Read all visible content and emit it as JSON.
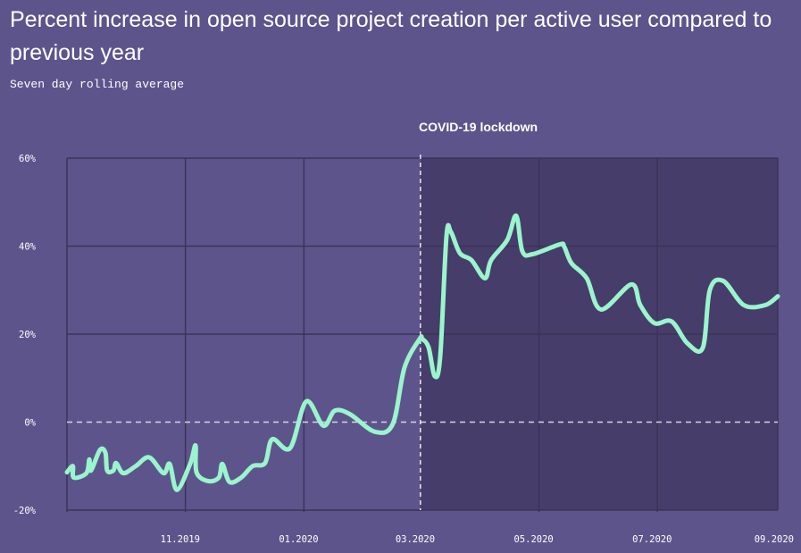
{
  "chart_data": {
    "type": "line",
    "title": "Percent increase in open source project creation per active user compared to previous year",
    "subtitle": "Seven day rolling average",
    "annotation": {
      "label": "COVID-19 lockdown",
      "start_day": 182
    },
    "x_start": "2019-09-01",
    "xlim_days": [
      0,
      366
    ],
    "ylim": [
      -20,
      60
    ],
    "grid": true,
    "yticks": [
      {
        "value": 60,
        "label": "60%"
      },
      {
        "value": 40,
        "label": "40%"
      },
      {
        "value": 20,
        "label": "20%"
      },
      {
        "value": 0,
        "label": "0%"
      },
      {
        "value": -20,
        "label": "-20%"
      }
    ],
    "xticks": [
      {
        "day": 61,
        "label": "11.2019"
      },
      {
        "day": 122,
        "label": "01.2020"
      },
      {
        "day": 182,
        "label": "03.2020"
      },
      {
        "day": 243,
        "label": "05.2020"
      },
      {
        "day": 304,
        "label": "07.2020"
      },
      {
        "day": 366,
        "label": "09.2020"
      }
    ],
    "series": [
      {
        "name": "Percent increase",
        "color": "#9af5cc",
        "days": [
          0,
          3,
          3.5,
          10,
          11.5,
          12.4,
          17,
          19.8,
          20.7,
          23.9,
          25.3,
          29,
          35.4,
          42.3,
          49.7,
          52.9,
          56.6,
          63.4,
          66.2,
          66.7,
          72.6,
          78.2,
          80,
          83.7,
          89.7,
          95.6,
          102,
          105.7,
          114.9,
          123.2,
          132,
          137.9,
          145.7,
          158.6,
          167.8,
          173.8,
          181.6,
          183,
          186.2,
          189.4,
          192.2,
          195.4,
          197.7,
          202.3,
          208.3,
          215.2,
          218.4,
          226.7,
          231.3,
          234.5,
          240,
          253.8,
          256.1,
          259.8,
          267.6,
          275,
          290.6,
          295.2,
          302.5,
          311.3,
          319.5,
          327.4,
          331,
          337.9,
          348.5,
          359.5,
          366
        ],
        "values": [
          -11.4,
          -10,
          -12.6,
          -11.6,
          -8.5,
          -11,
          -6.3,
          -7,
          -11,
          -11,
          -9.3,
          -11.6,
          -10,
          -8,
          -11.6,
          -9.5,
          -15.4,
          -9.5,
          -5.3,
          -11.4,
          -13.4,
          -12.6,
          -9.5,
          -13.6,
          -12.6,
          -10,
          -9.3,
          -3.9,
          -5.9,
          4.7,
          -0.8,
          2.6,
          1.8,
          -2.2,
          -0.4,
          12.4,
          18.9,
          18.9,
          17,
          10.4,
          15,
          42.2,
          43.2,
          38.4,
          36.8,
          32.7,
          36.8,
          41.4,
          46.9,
          38.8,
          38.2,
          40.4,
          39.8,
          36.1,
          32.7,
          25.6,
          31.3,
          26.6,
          22.5,
          22.9,
          17.9,
          16.9,
          30,
          32.1,
          26.6,
          26.6,
          28.6
        ]
      }
    ],
    "colors": {
      "background": "#5e548c",
      "lockdown_shade": "#463d6a",
      "grid": "#3b3358"
    }
  }
}
